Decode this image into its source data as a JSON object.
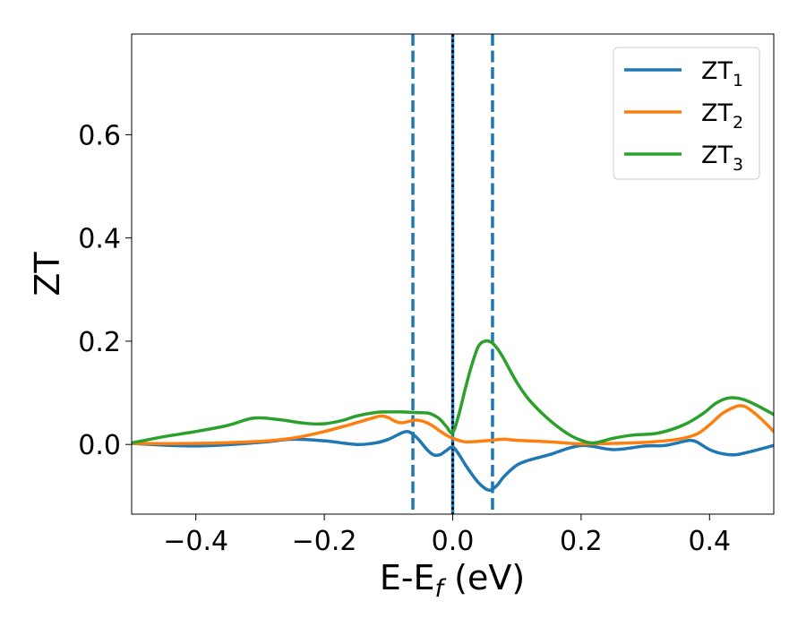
{
  "chart_data": {
    "type": "line",
    "title": "",
    "xlabel": "E-E_f (eV)",
    "xlabel_parts": {
      "base": "E-E",
      "sub": "f",
      "rest": " (eV)"
    },
    "ylabel": "ZT",
    "xlim": [
      -0.5,
      0.5
    ],
    "ylim": [
      -0.135,
      0.795
    ],
    "xticks": [
      -0.4,
      -0.2,
      0.0,
      0.2,
      0.4
    ],
    "xtick_labels": [
      "−0.4",
      "−0.2",
      "0.0",
      "0.2",
      "0.4"
    ],
    "yticks": [
      0.0,
      0.2,
      0.4,
      0.6
    ],
    "ytick_labels": [
      "0.0",
      "0.2",
      "0.4",
      "0.6"
    ],
    "grid": false,
    "legend_position": "top-right",
    "vlines": [
      {
        "x": -0.062,
        "style": "dashed",
        "color": "#1f77b4"
      },
      {
        "x": 0.0,
        "style": "solid",
        "color": "#1f77b4"
      },
      {
        "x": 0.0,
        "style": "dotted",
        "color": "#000000"
      },
      {
        "x": 0.062,
        "style": "dashed",
        "color": "#1f77b4"
      }
    ],
    "series": [
      {
        "name": "ZT1",
        "legend_base": "ZT",
        "legend_sub": "1",
        "color": "#1f77b4",
        "x": [
          -0.5,
          -0.4,
          -0.3,
          -0.25,
          -0.2,
          -0.15,
          -0.12,
          -0.1,
          -0.08,
          -0.07,
          -0.06,
          -0.05,
          -0.04,
          -0.03,
          -0.02,
          -0.01,
          0.0,
          0.01,
          0.02,
          0.03,
          0.04,
          0.05,
          0.055,
          0.06,
          0.07,
          0.08,
          0.1,
          0.12,
          0.15,
          0.2,
          0.25,
          0.3,
          0.33,
          0.36,
          0.37,
          0.38,
          0.4,
          0.42,
          0.44,
          0.46,
          0.5
        ],
        "y": [
          0.002,
          -0.003,
          0.004,
          0.01,
          0.007,
          0.0,
          0.003,
          0.01,
          0.022,
          0.025,
          0.018,
          0.005,
          -0.01,
          -0.02,
          -0.02,
          -0.012,
          -0.005,
          -0.02,
          -0.04,
          -0.058,
          -0.074,
          -0.085,
          -0.088,
          -0.088,
          -0.078,
          -0.062,
          -0.04,
          -0.03,
          -0.02,
          -0.002,
          -0.01,
          -0.003,
          -0.002,
          0.006,
          0.008,
          0.005,
          -0.01,
          -0.018,
          -0.02,
          -0.015,
          -0.002
        ]
      },
      {
        "name": "ZT2",
        "legend_base": "ZT",
        "legend_sub": "2",
        "color": "#ff7f0e",
        "x": [
          -0.5,
          -0.4,
          -0.3,
          -0.25,
          -0.2,
          -0.15,
          -0.12,
          -0.11,
          -0.1,
          -0.09,
          -0.08,
          -0.07,
          -0.06,
          -0.05,
          -0.04,
          -0.03,
          -0.02,
          -0.01,
          0.0,
          0.02,
          0.05,
          0.08,
          0.1,
          0.15,
          0.2,
          0.25,
          0.3,
          0.35,
          0.38,
          0.4,
          0.42,
          0.44,
          0.45,
          0.46,
          0.48,
          0.5
        ],
        "y": [
          0.002,
          0.002,
          0.006,
          0.012,
          0.025,
          0.042,
          0.053,
          0.055,
          0.052,
          0.045,
          0.042,
          0.044,
          0.047,
          0.046,
          0.042,
          0.035,
          0.026,
          0.018,
          0.012,
          0.005,
          0.007,
          0.01,
          0.008,
          0.005,
          0.001,
          0.002,
          0.004,
          0.01,
          0.02,
          0.038,
          0.06,
          0.073,
          0.075,
          0.07,
          0.05,
          0.025
        ]
      },
      {
        "name": "ZT3",
        "legend_base": "ZT",
        "legend_sub": "3",
        "color": "#2ca02c",
        "x": [
          -0.5,
          -0.45,
          -0.4,
          -0.35,
          -0.31,
          -0.27,
          -0.23,
          -0.2,
          -0.17,
          -0.15,
          -0.12,
          -0.1,
          -0.08,
          -0.06,
          -0.04,
          -0.03,
          -0.02,
          -0.01,
          0.0,
          0.01,
          0.02,
          0.03,
          0.04,
          0.05,
          0.06,
          0.07,
          0.08,
          0.1,
          0.12,
          0.15,
          0.18,
          0.2,
          0.22,
          0.25,
          0.28,
          0.32,
          0.36,
          0.39,
          0.41,
          0.43,
          0.45,
          0.47,
          0.5
        ],
        "y": [
          0.003,
          0.015,
          0.025,
          0.037,
          0.051,
          0.048,
          0.041,
          0.04,
          0.047,
          0.055,
          0.062,
          0.063,
          0.063,
          0.062,
          0.061,
          0.057,
          0.049,
          0.035,
          0.023,
          0.06,
          0.11,
          0.155,
          0.19,
          0.2,
          0.198,
          0.185,
          0.165,
          0.12,
          0.085,
          0.048,
          0.02,
          0.008,
          0.003,
          0.012,
          0.018,
          0.022,
          0.038,
          0.06,
          0.08,
          0.09,
          0.088,
          0.078,
          0.058
        ]
      }
    ]
  }
}
